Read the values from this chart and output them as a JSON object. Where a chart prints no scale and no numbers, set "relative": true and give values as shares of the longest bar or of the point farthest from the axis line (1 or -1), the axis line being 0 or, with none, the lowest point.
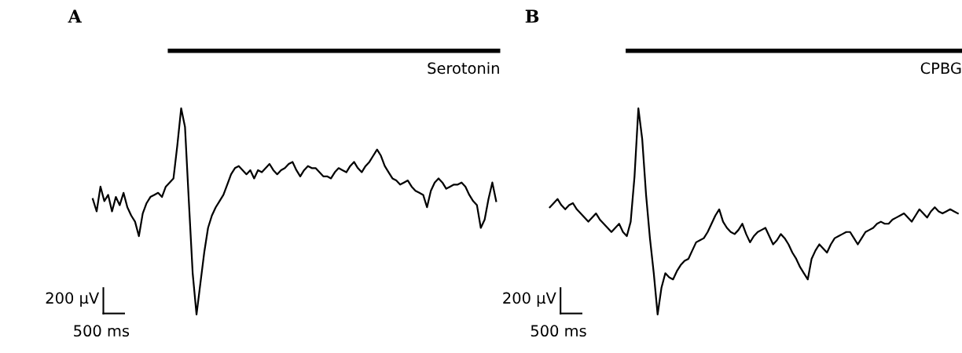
{
  "chart_data": [
    {
      "type": "line",
      "title": "A",
      "relative": true,
      "categories": [
        null,
        null,
        null,
        null,
        null,
        null,
        null,
        null,
        null,
        null,
        null,
        null,
        null,
        null,
        null,
        null,
        null,
        null,
        null,
        null,
        null,
        null,
        null,
        null,
        null,
        null,
        null,
        null,
        null,
        null,
        null,
        null,
        null,
        null,
        null,
        null,
        null,
        null,
        null,
        null,
        null,
        null,
        null,
        null,
        null,
        null,
        null,
        null,
        null,
        null,
        null,
        null,
        null,
        null,
        null,
        null,
        null,
        null,
        null,
        null,
        null,
        null,
        null,
        null,
        null,
        null,
        null,
        null,
        null,
        null,
        null,
        null,
        null,
        null,
        null,
        null,
        null,
        null,
        null,
        null,
        null,
        null,
        null,
        null,
        null,
        null,
        null,
        null,
        null,
        null,
        null,
        null,
        null,
        null,
        null,
        null,
        null,
        null,
        null,
        null,
        null,
        null,
        null,
        null,
        null,
        null
      ],
      "series": [
        {
          "color": "#000000",
          "values": [
            0.56,
            0.5,
            0.62,
            0.55,
            0.58,
            0.5,
            0.57,
            0.53,
            0.59,
            0.52,
            0.48,
            0.45,
            0.38,
            0.49,
            0.54,
            0.57,
            0.58,
            0.59,
            0.57,
            0.62,
            0.64,
            0.66,
            0.82,
            1,
            0.91,
            0.55,
            0.2,
            0,
            0.15,
            0.3,
            0.42,
            0.48,
            0.52,
            0.55,
            0.58,
            0.63,
            0.68,
            0.71,
            0.72,
            0.7,
            0.68,
            0.7,
            0.66,
            0.7,
            0.69,
            0.71,
            0.73,
            0.7,
            0.68,
            0.7,
            0.71,
            0.73,
            0.74,
            0.7,
            0.67,
            0.7,
            0.72,
            0.71,
            0.71,
            0.69,
            0.67,
            0.67,
            0.66,
            0.69,
            0.71,
            0.7,
            0.69,
            0.72,
            0.74,
            0.71,
            0.69,
            0.72,
            0.74,
            0.77,
            0.8,
            0.77,
            0.72,
            0.69,
            0.66,
            0.65,
            0.63,
            0.64,
            0.65,
            0.62,
            0.6,
            0.59,
            0.58,
            0.52,
            0.6,
            0.64,
            0.66,
            0.64,
            0.61,
            0.62,
            0.63,
            0.63,
            0.64,
            0.62,
            0.58,
            0.55,
            0.53,
            0.42,
            0.46,
            0.56,
            0.64,
            0.55
          ]
        }
      ],
      "annotations": [
        "Serotonin",
        "200 µV",
        "500 ms"
      ]
    },
    {
      "type": "line",
      "title": "B",
      "relative": true,
      "categories": [
        null,
        null,
        null,
        null,
        null,
        null,
        null,
        null,
        null,
        null,
        null,
        null,
        null,
        null,
        null,
        null,
        null,
        null,
        null,
        null,
        null,
        null,
        null,
        null,
        null,
        null,
        null,
        null,
        null,
        null,
        null,
        null,
        null,
        null,
        null,
        null,
        null,
        null,
        null,
        null,
        null,
        null,
        null,
        null,
        null,
        null,
        null,
        null,
        null,
        null,
        null,
        null,
        null,
        null,
        null,
        null,
        null,
        null,
        null,
        null,
        null,
        null,
        null,
        null,
        null,
        null,
        null,
        null,
        null,
        null,
        null,
        null,
        null,
        null,
        null,
        null,
        null,
        null,
        null,
        null,
        null,
        null,
        null,
        null,
        null,
        null,
        null,
        null,
        null,
        null,
        null,
        null,
        null,
        null,
        null,
        null,
        null,
        null,
        null,
        null,
        null,
        null,
        null,
        null,
        null,
        null,
        null
      ],
      "series": [
        {
          "color": "#000000",
          "values": [
            0.52,
            0.54,
            0.56,
            0.53,
            0.51,
            0.53,
            0.54,
            0.51,
            0.49,
            0.47,
            0.45,
            0.47,
            0.49,
            0.46,
            0.44,
            0.42,
            0.4,
            0.42,
            0.44,
            0.4,
            0.38,
            0.45,
            0.67,
            1,
            0.85,
            0.58,
            0.37,
            0.2,
            0,
            0.13,
            0.2,
            0.18,
            0.17,
            0.21,
            0.24,
            0.26,
            0.27,
            0.31,
            0.35,
            0.36,
            0.37,
            0.4,
            0.44,
            0.48,
            0.51,
            0.45,
            0.42,
            0.4,
            0.39,
            0.41,
            0.44,
            0.39,
            0.35,
            0.38,
            0.4,
            0.41,
            0.42,
            0.38,
            0.34,
            0.36,
            0.39,
            0.37,
            0.34,
            0.3,
            0.27,
            0.23,
            0.2,
            0.17,
            0.27,
            0.31,
            0.34,
            0.32,
            0.3,
            0.34,
            0.37,
            0.38,
            0.39,
            0.4,
            0.4,
            0.37,
            0.34,
            0.37,
            0.4,
            0.41,
            0.42,
            0.44,
            0.45,
            0.44,
            0.44,
            0.46,
            0.47,
            0.48,
            0.49,
            0.47,
            0.45,
            0.48,
            0.51,
            0.49,
            0.47,
            0.5,
            0.52,
            0.5,
            0.49,
            0.5,
            0.51,
            0.5,
            0.49
          ]
        }
      ],
      "annotations": [
        "CPBG",
        "200 µV",
        "500 ms"
      ]
    }
  ]
}
